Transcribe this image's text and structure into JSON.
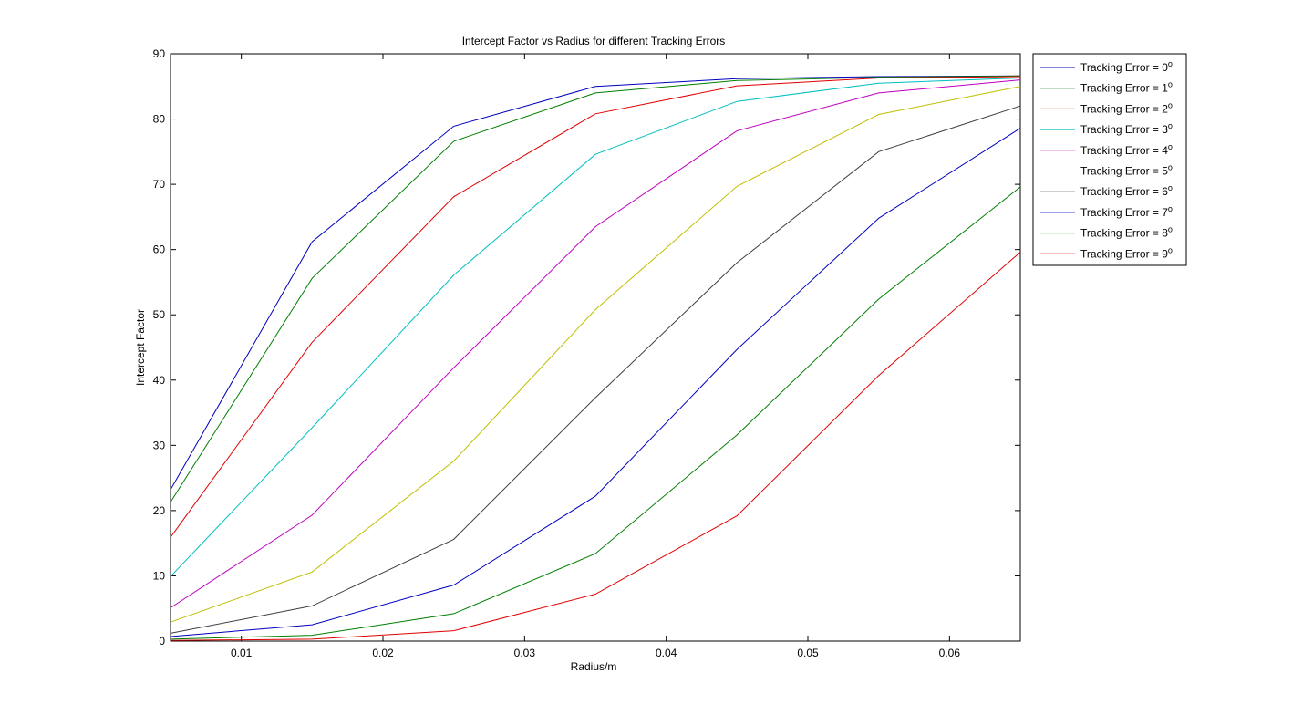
{
  "chart_data": {
    "type": "line",
    "title": "Intercept Factor vs Radius for different Tracking Errors",
    "xlabel": "Radius/m",
    "ylabel": "Intercept Factor",
    "xlim": [
      0.005,
      0.065
    ],
    "ylim": [
      0,
      90
    ],
    "xticks": [
      0.01,
      0.02,
      0.03,
      0.04,
      0.05,
      0.06
    ],
    "yticks": [
      0,
      10,
      20,
      30,
      40,
      50,
      60,
      70,
      80,
      90
    ],
    "xtick_labels": [
      "0.01",
      "0.02",
      "0.03",
      "0.04",
      "0.05",
      "0.06"
    ],
    "ytick_labels": [
      "0",
      "10",
      "20",
      "30",
      "40",
      "50",
      "60",
      "70",
      "80",
      "90"
    ],
    "grid": false,
    "legend_position": "outside-top-right",
    "x": [
      0.005,
      0.015,
      0.025,
      0.035,
      0.045,
      0.055,
      0.065
    ],
    "series": [
      {
        "name": "Tracking Error = 0",
        "superscript": "o",
        "color": "#0000bf",
        "values": [
          23.2,
          61.2,
          78.9,
          85.0,
          86.2,
          86.5,
          86.6
        ]
      },
      {
        "name": "Tracking Error = 1",
        "superscript": "o",
        "color": "#007f00",
        "values": [
          21.3,
          55.6,
          76.6,
          84.0,
          85.9,
          86.4,
          86.6
        ]
      },
      {
        "name": "Tracking Error = 2",
        "superscript": "o",
        "color": "#e00000",
        "values": [
          15.9,
          45.8,
          68.1,
          80.8,
          85.1,
          86.3,
          86.5
        ]
      },
      {
        "name": "Tracking Error = 3",
        "superscript": "o",
        "color": "#00bfbf",
        "values": [
          9.9,
          32.7,
          56.1,
          74.6,
          82.7,
          85.5,
          86.3
        ]
      },
      {
        "name": "Tracking Error = 4",
        "superscript": "o",
        "color": "#bf00bf",
        "values": [
          5.1,
          19.3,
          41.9,
          63.5,
          78.2,
          84.0,
          86.0
        ]
      },
      {
        "name": "Tracking Error = 5",
        "superscript": "o",
        "color": "#bfbf00",
        "values": [
          2.9,
          10.6,
          27.6,
          50.8,
          69.7,
          80.7,
          85.0
        ]
      },
      {
        "name": "Tracking Error = 6",
        "superscript": "o",
        "color": "#3f3f3f",
        "values": [
          1.2,
          5.4,
          15.6,
          37.3,
          58.0,
          75.0,
          82.0
        ]
      },
      {
        "name": "Tracking Error = 7",
        "superscript": "o",
        "color": "#0000bf",
        "values": [
          0.7,
          2.5,
          8.6,
          22.2,
          44.7,
          64.8,
          78.6
        ]
      },
      {
        "name": "Tracking Error = 8",
        "superscript": "o",
        "color": "#007f00",
        "values": [
          0.3,
          0.9,
          4.2,
          13.4,
          31.6,
          52.4,
          69.6
        ]
      },
      {
        "name": "Tracking Error = 9",
        "superscript": "o",
        "color": "#e00000",
        "values": [
          0.1,
          0.3,
          1.6,
          7.2,
          19.2,
          40.7,
          59.6
        ]
      }
    ]
  }
}
